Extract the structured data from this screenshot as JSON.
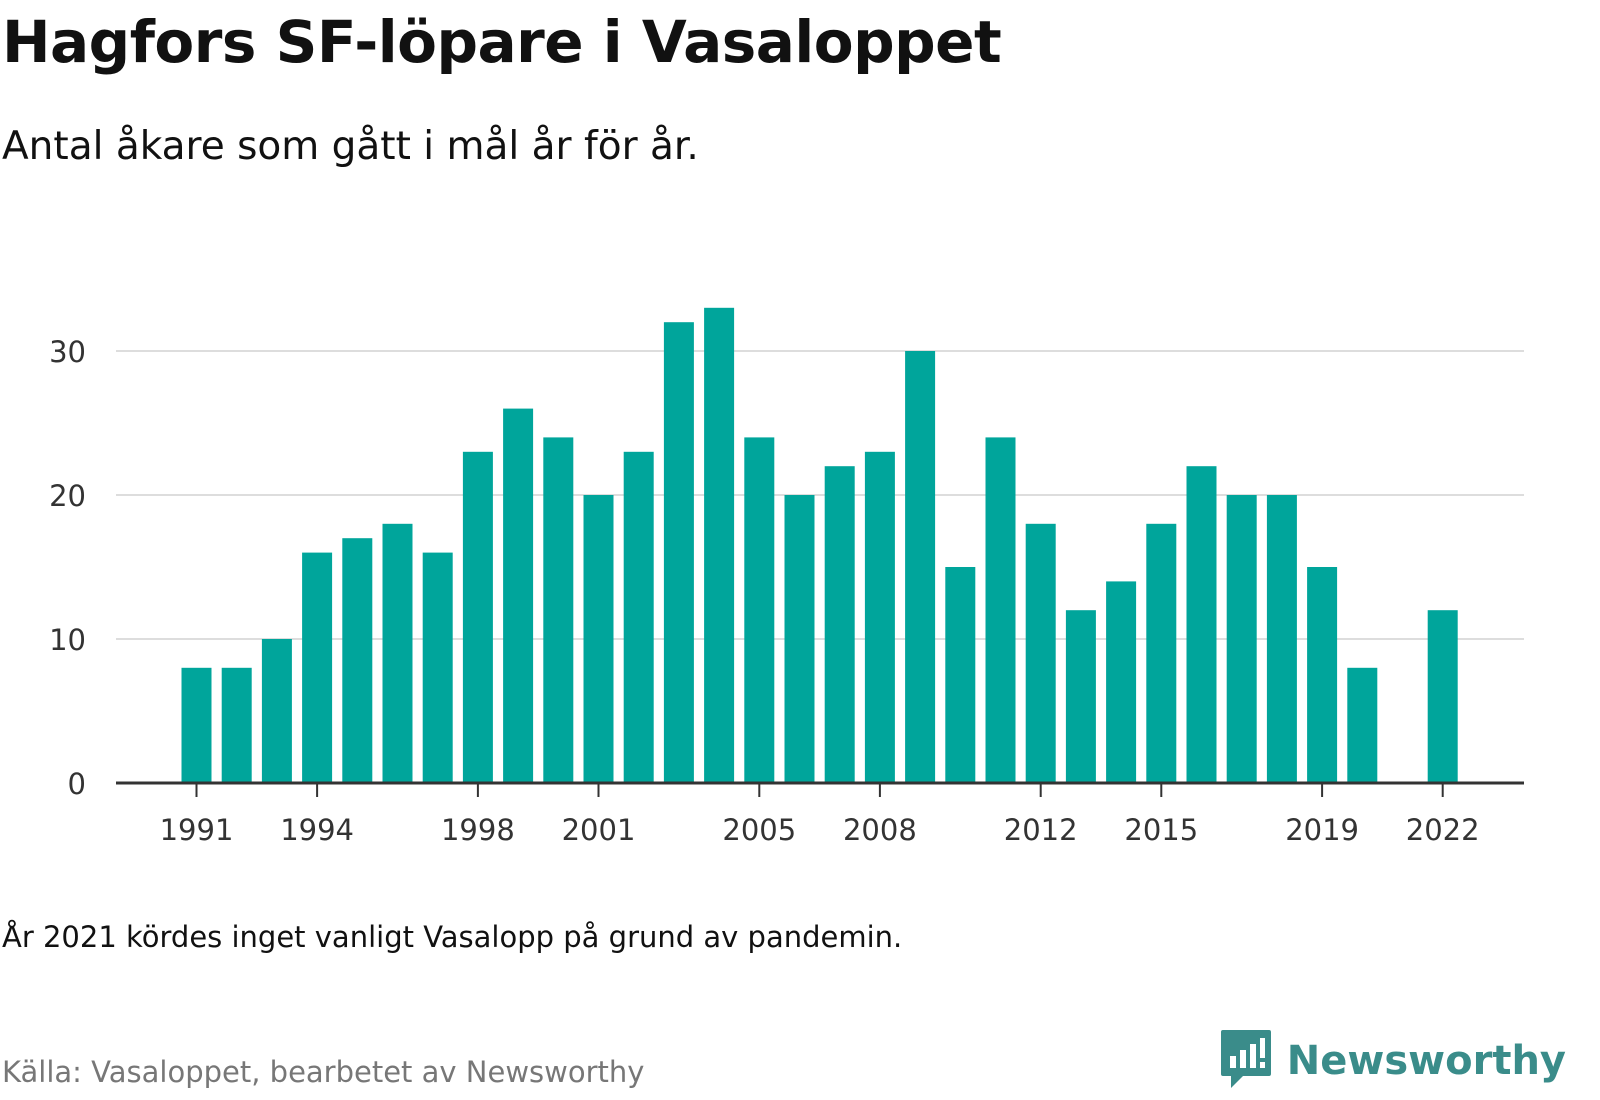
{
  "header": {
    "title": "Hagfors SF-löpare i Vasaloppet",
    "subtitle": "Antal åkare som gått i mål år för år."
  },
  "footer": {
    "note": "År 2021 kördes inget vanligt Vasalopp på grund av pandemin.",
    "source": "Källa: Vasaloppet, bearbetet av Newsworthy",
    "brand": "Newsworthy",
    "brand_icon": "newsworthy-logo-icon"
  },
  "colors": {
    "bar": "#00a59b",
    "grid": "#dddddd",
    "axis": "#333333",
    "brand": "#3a8c8a"
  },
  "chart_data": {
    "type": "bar",
    "title": "Hagfors SF-löpare i Vasaloppet",
    "subtitle": "Antal åkare som gått i mål år för år.",
    "xlabel": "",
    "ylabel": "",
    "categories": [
      1991,
      1992,
      1993,
      1994,
      1995,
      1996,
      1997,
      1998,
      1999,
      2000,
      2001,
      2002,
      2003,
      2004,
      2005,
      2006,
      2007,
      2008,
      2009,
      2010,
      2011,
      2012,
      2013,
      2014,
      2015,
      2016,
      2017,
      2018,
      2019,
      2020,
      2021,
      2022
    ],
    "values": [
      8,
      8,
      10,
      16,
      17,
      18,
      16,
      23,
      26,
      24,
      20,
      23,
      32,
      33,
      24,
      20,
      22,
      23,
      30,
      15,
      24,
      18,
      12,
      14,
      18,
      22,
      20,
      20,
      15,
      8,
      null,
      12
    ],
    "x_tick_labels": [
      "1991",
      "1994",
      "1998",
      "2001",
      "2005",
      "2008",
      "2012",
      "2015",
      "2019",
      "2022"
    ],
    "y_ticks": [
      0,
      10,
      20,
      30
    ],
    "ylim": [
      0,
      33
    ],
    "grid": true,
    "legend": "none"
  }
}
